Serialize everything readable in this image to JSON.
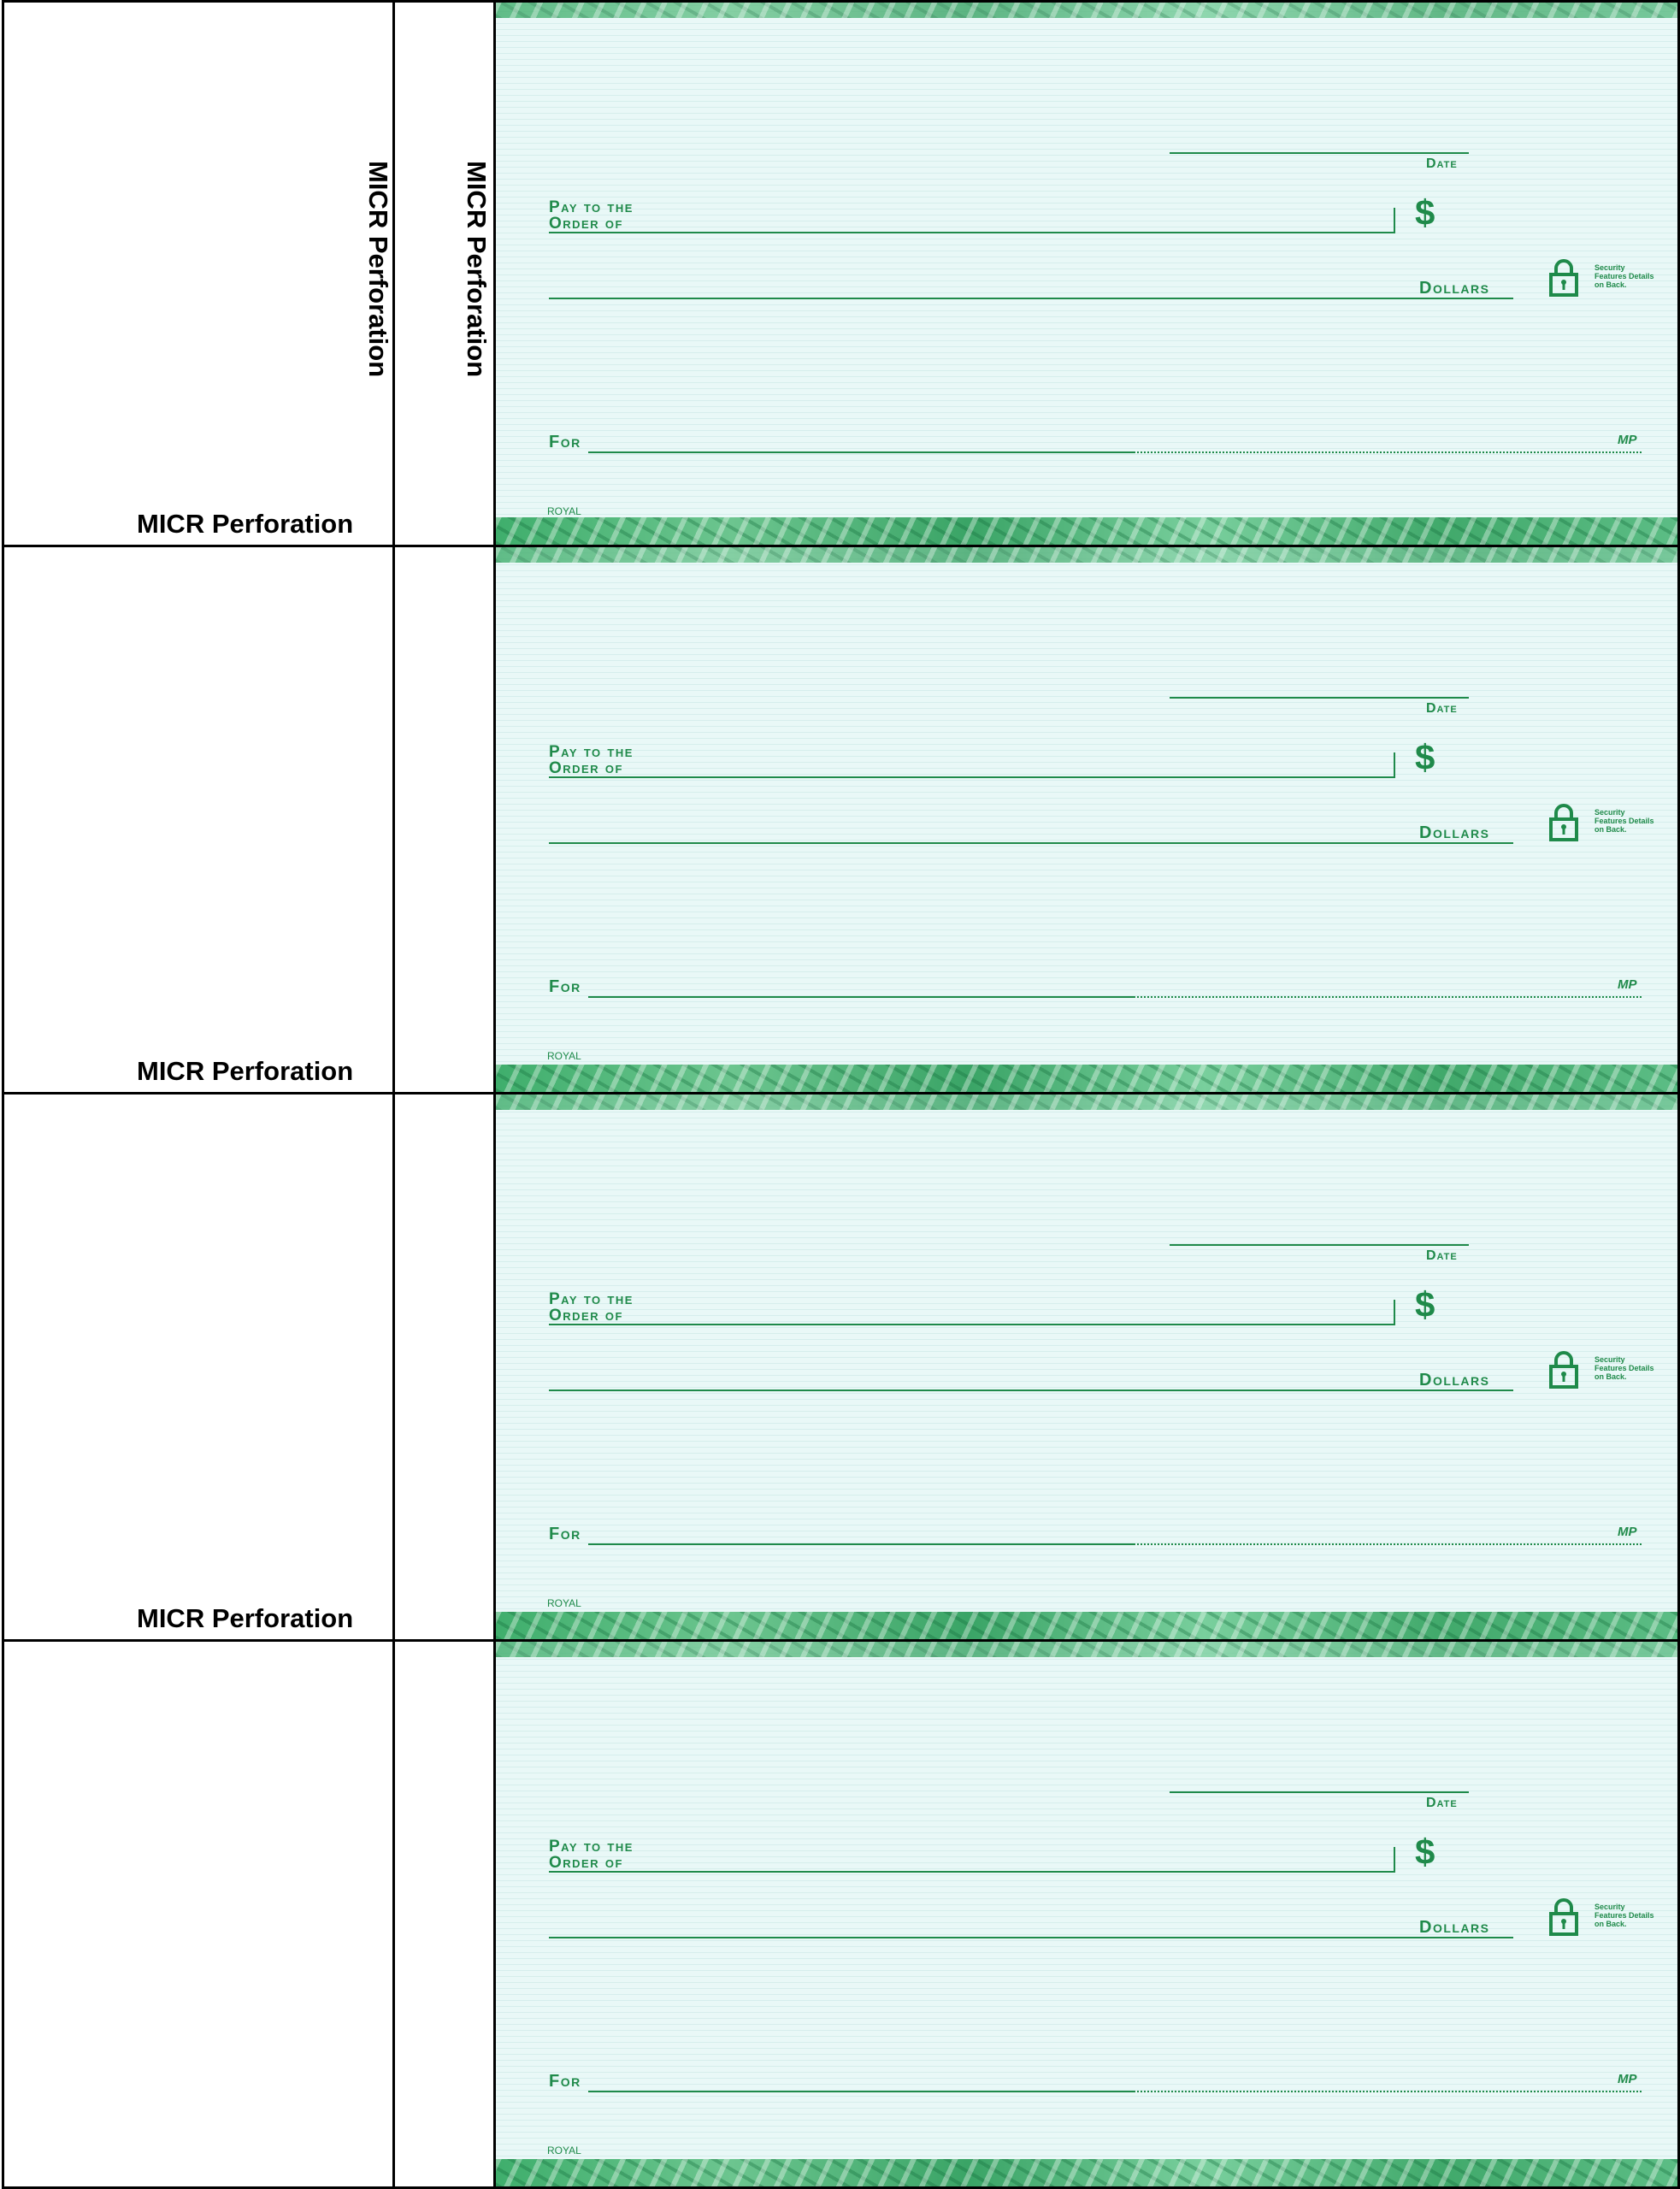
{
  "sheet": {
    "perforation_label": "MICR Perforation",
    "brand_color": "#1f8a4a",
    "paper_color": "#e9f8f7"
  },
  "checks": [
    {
      "date_label": "Date",
      "pay_label_1": "Pay to the",
      "pay_label_2": "Order of",
      "dollar_sign": "$",
      "dollars_label": "Dollars",
      "security_text": "Security Features Details on Back.",
      "for_label": "For",
      "mp_label": "MP",
      "royal_label": "ROYAL"
    },
    {
      "date_label": "Date",
      "pay_label_1": "Pay to the",
      "pay_label_2": "Order of",
      "dollar_sign": "$",
      "dollars_label": "Dollars",
      "security_text": "Security Features Details on Back.",
      "for_label": "For",
      "mp_label": "MP",
      "royal_label": "ROYAL"
    },
    {
      "date_label": "Date",
      "pay_label_1": "Pay to the",
      "pay_label_2": "Order of",
      "dollar_sign": "$",
      "dollars_label": "Dollars",
      "security_text": "Security Features Details on Back.",
      "for_label": "For",
      "mp_label": "MP",
      "royal_label": "ROYAL"
    },
    {
      "date_label": "Date",
      "pay_label_1": "Pay to the",
      "pay_label_2": "Order of",
      "dollar_sign": "$",
      "dollars_label": "Dollars",
      "security_text": "Security Features Details on Back.",
      "for_label": "For",
      "mp_label": "MP",
      "royal_label": "ROYAL"
    }
  ],
  "icons": {
    "lock": "lock-icon"
  }
}
